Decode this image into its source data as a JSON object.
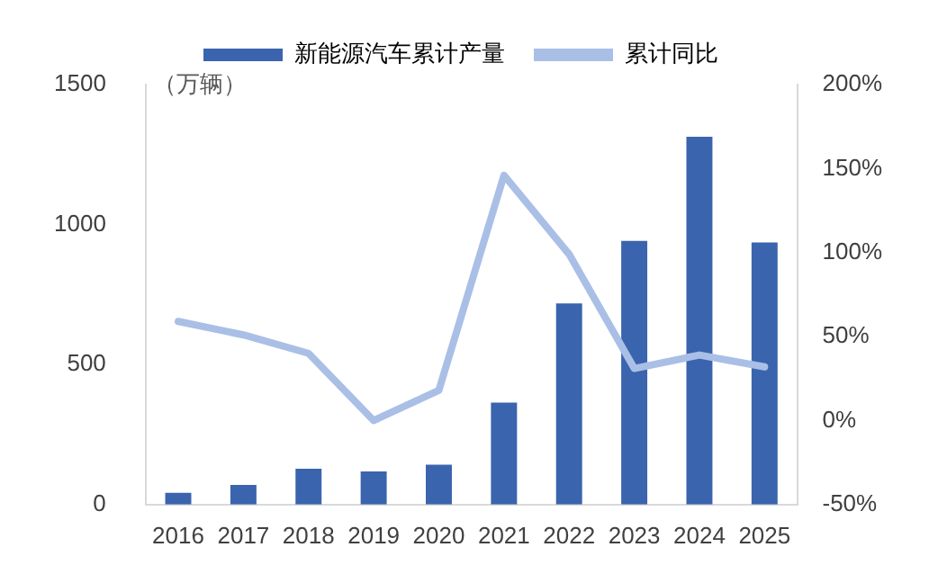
{
  "chart_data": {
    "type": "bar",
    "ylabel": "（万辆）",
    "categories": [
      "2016",
      "2017",
      "2018",
      "2019",
      "2020",
      "2021",
      "2022",
      "2023",
      "2024",
      "2025"
    ],
    "series": [
      {
        "name": "新能源汽车累计产量",
        "color": "#3a64ad",
        "values": [
          42,
          70,
          128,
          118,
          142,
          364,
          718,
          942,
          1314,
          936
        ]
      },
      {
        "name": "累计同比",
        "type": "line",
        "axis": "y2",
        "color": "#a9bfe6",
        "values": [
          59,
          51,
          40,
          0,
          18,
          146,
          99,
          31,
          39,
          32
        ]
      }
    ],
    "ylim": [
      0,
      1500
    ],
    "yticks": [
      0,
      500,
      1000,
      1500
    ],
    "y2lim": [
      -50,
      200
    ],
    "y2ticks": [
      {
        "value": -50,
        "label": "-50%"
      },
      {
        "value": 0,
        "label": "0%"
      },
      {
        "value": 50,
        "label": "50%"
      },
      {
        "value": 100,
        "label": "100%"
      },
      {
        "value": 150,
        "label": "150%"
      },
      {
        "value": 200,
        "label": "200%"
      }
    ],
    "grid": false,
    "legend": "top",
    "marker": "none"
  }
}
